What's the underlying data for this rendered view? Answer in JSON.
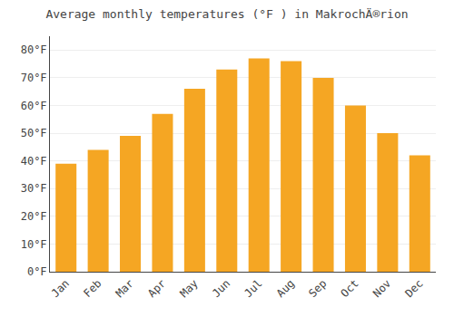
{
  "chart_data": {
    "type": "bar",
    "title": "Average monthly temperatures (°F ) in MakrochÄ®rion",
    "categories": [
      "Jan",
      "Feb",
      "Mar",
      "Apr",
      "May",
      "Jun",
      "Jul",
      "Aug",
      "Sep",
      "Oct",
      "Nov",
      "Dec"
    ],
    "values": [
      39,
      44,
      49,
      57,
      66,
      73,
      77,
      76,
      70,
      60,
      50,
      42
    ],
    "color": "#F5A623",
    "ylim": [
      0,
      85
    ],
    "yticks": [
      {
        "value": 0,
        "label": "0°F"
      },
      {
        "value": 10,
        "label": "10°F"
      },
      {
        "value": 20,
        "label": "20°F"
      },
      {
        "value": 30,
        "label": "30°F"
      },
      {
        "value": 40,
        "label": "40°F"
      },
      {
        "value": 50,
        "label": "50°F"
      },
      {
        "value": 60,
        "label": "60°F"
      },
      {
        "value": 70,
        "label": "70°F"
      },
      {
        "value": 80,
        "label": "80°F"
      }
    ],
    "grid": true
  }
}
